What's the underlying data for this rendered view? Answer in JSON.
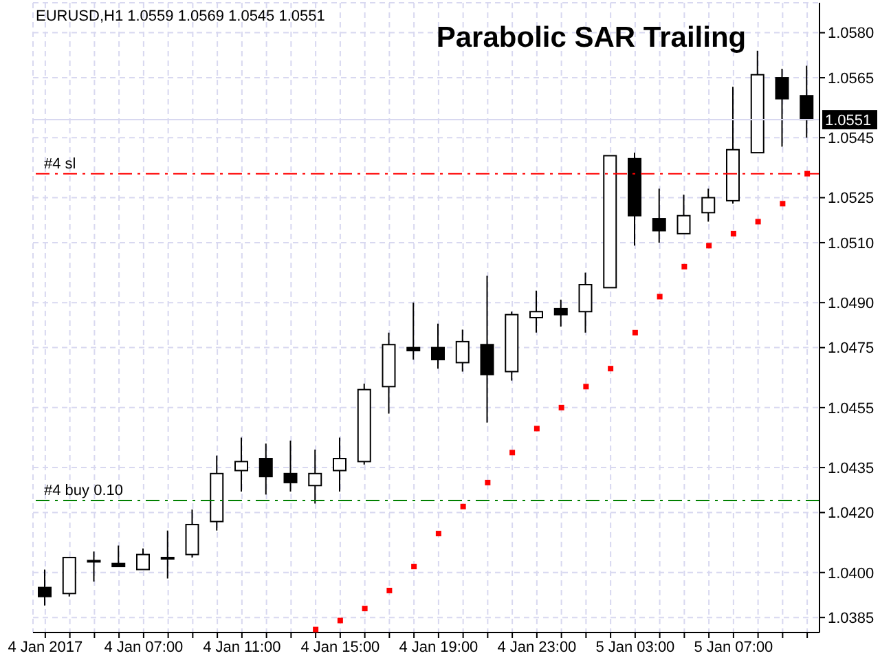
{
  "chart_data": {
    "type": "candlestick",
    "title": "Parabolic SAR Trailing",
    "subtitle": "EURUSD,H1  1.0559 1.0569 1.0545 1.0551",
    "categories": [
      "4 Jan 2017",
      null,
      null,
      null,
      "4 Jan 07:00",
      null,
      null,
      null,
      "4 Jan 11:00",
      null,
      null,
      null,
      "4 Jan 15:00",
      null,
      null,
      null,
      "4 Jan 19:00",
      null,
      null,
      null,
      "4 Jan 23:00",
      null,
      null,
      null,
      "5 Jan 03:00",
      null,
      null,
      null,
      "5 Jan 07:00",
      null,
      null,
      null
    ],
    "color": "#000000",
    "ohlc": [
      [
        1.0395,
        1.0401,
        1.0389,
        1.0392
      ],
      [
        1.0393,
        1.0405,
        1.0392,
        1.0405
      ],
      [
        1.0404,
        1.0407,
        1.0397,
        1.0404
      ],
      [
        1.0403,
        1.0409,
        1.0402,
        1.0402
      ],
      [
        1.0401,
        1.0408,
        1.0401,
        1.0406
      ],
      [
        1.0405,
        1.0414,
        1.0398,
        1.0405
      ],
      [
        1.0406,
        1.0421,
        1.0405,
        1.0416
      ],
      [
        1.0417,
        1.0439,
        1.0414,
        1.0433
      ],
      [
        1.0434,
        1.0445,
        1.0427,
        1.0437
      ],
      [
        1.0438,
        1.0443,
        1.0426,
        1.0432
      ],
      [
        1.0433,
        1.0444,
        1.0427,
        1.043
      ],
      [
        1.0429,
        1.0441,
        1.0423,
        1.0433
      ],
      [
        1.0434,
        1.0445,
        1.0427,
        1.0438
      ],
      [
        1.0437,
        1.0463,
        1.0436,
        1.0461
      ],
      [
        1.0462,
        1.048,
        1.0453,
        1.0476
      ],
      [
        1.0475,
        1.049,
        1.0471,
        1.0474
      ],
      [
        1.0475,
        1.0483,
        1.0468,
        1.0471
      ],
      [
        1.047,
        1.0481,
        1.0467,
        1.0477
      ],
      [
        1.0476,
        1.0499,
        1.045,
        1.0466
      ],
      [
        1.0467,
        1.0487,
        1.0464,
        1.0486
      ],
      [
        1.0485,
        1.0494,
        1.048,
        1.0487
      ],
      [
        1.0488,
        1.0491,
        1.0482,
        1.0486
      ],
      [
        1.0487,
        1.05,
        1.048,
        1.0496
      ],
      [
        1.0495,
        1.0539,
        1.0495,
        1.0539
      ],
      [
        1.0538,
        1.054,
        1.0509,
        1.0519
      ],
      [
        1.0518,
        1.0528,
        1.051,
        1.0514
      ],
      [
        1.0513,
        1.0526,
        1.0513,
        1.0519
      ],
      [
        1.052,
        1.0528,
        1.0517,
        1.0525
      ],
      [
        1.0524,
        1.0562,
        1.0523,
        1.0541
      ],
      [
        1.054,
        1.0574,
        1.054,
        1.0566
      ],
      [
        1.0565,
        1.0568,
        1.0542,
        1.0558
      ],
      [
        1.0559,
        1.0569,
        1.0545,
        1.0551
      ]
    ],
    "series": [
      {
        "type": "scatter",
        "color": "#ff0000",
        "marker": "square",
        "values": [
          null,
          null,
          null,
          null,
          null,
          null,
          null,
          null,
          null,
          null,
          null,
          1.0381,
          1.0384,
          1.0388,
          1.0394,
          1.0402,
          1.0413,
          1.0422,
          1.043,
          1.044,
          1.0448,
          1.0455,
          1.0462,
          1.0468,
          1.048,
          1.0492,
          1.0502,
          1.0509,
          1.0513,
          1.0517,
          1.0523,
          1.0533
        ]
      }
    ],
    "ylim": [
      1.038,
      1.059
    ],
    "yticks": [
      1.0385,
      {
        "value": 1.04,
        "label": "1.0400"
      },
      {
        "value": 1.042,
        "label": "1.0420"
      },
      1.0435,
      1.0455,
      1.0475,
      {
        "value": 1.049,
        "label": "1.0490"
      },
      {
        "value": 1.051,
        "label": "1.0510"
      },
      1.0525,
      1.0545,
      1.0565,
      {
        "value": 1.058,
        "label": "1.0580"
      }
    ],
    "ref_lines": [
      {
        "axis": "y",
        "value": 1.0533,
        "label": "#4 sl",
        "color": "#ff0000",
        "line_style": "dashed"
      },
      {
        "axis": "y",
        "value": 1.0424,
        "label": "#4 buy 0.10",
        "color": "#008000",
        "line_style": "dashed"
      },
      {
        "axis": "y",
        "value": 1.0551,
        "label": "1.0551",
        "color": "#d8d8f0",
        "line_style": "solid"
      }
    ],
    "grid": true,
    "legend": false
  }
}
